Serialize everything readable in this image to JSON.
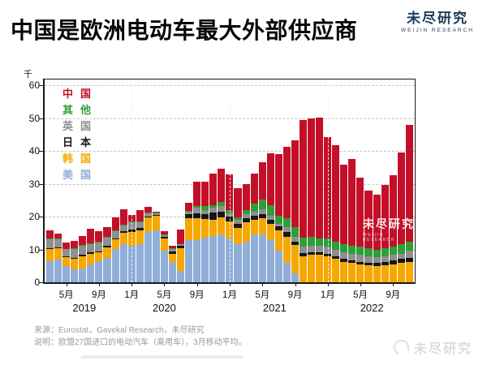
{
  "page": {
    "title": "中国是欧洲电动车最大外部供应商"
  },
  "brand": {
    "name": "未尽研究",
    "sub": "WEIJIN RESEARCH"
  },
  "watermark": {
    "name": "未尽研究",
    "sub": "WEIJIN RESEARCH"
  },
  "footer": {
    "source": "来源：Eurostat，Gavekal Research，未尽研究",
    "note": "说明：欧盟27国进口的电动汽车（乘用车），3月移动平均。",
    "bottom_logo": "未尽研究"
  },
  "chart_data": {
    "type": "bar",
    "stacked": true,
    "unit_label": "千",
    "ylim": [
      0,
      60
    ],
    "yticks": [
      0,
      10,
      20,
      30,
      40,
      50,
      60
    ],
    "grid": "horizontal-dashed",
    "legend_position": "top-left-inside",
    "legend_order_top_to_bottom": [
      "中国",
      "其他",
      "英国",
      "日本",
      "韩国",
      "美国"
    ],
    "x": [
      "2019-03",
      "2019-04",
      "2019-05",
      "2019-06",
      "2019-07",
      "2019-08",
      "2019-09",
      "2019-10",
      "2019-11",
      "2019-12",
      "2020-01",
      "2020-02",
      "2020-03",
      "2020-04",
      "2020-05",
      "2020-06",
      "2020-07",
      "2020-08",
      "2020-09",
      "2020-10",
      "2020-11",
      "2020-12",
      "2021-01",
      "2021-02",
      "2021-03",
      "2021-04",
      "2021-05",
      "2021-06",
      "2021-07",
      "2021-08",
      "2021-09",
      "2021-10",
      "2021-11",
      "2021-12",
      "2022-01",
      "2022-02",
      "2022-03",
      "2022-04",
      "2022-05",
      "2022-06",
      "2022-07",
      "2022-08",
      "2022-09",
      "2022-10",
      "2022-11"
    ],
    "xticks": [
      {
        "i": 2,
        "label": "5月"
      },
      {
        "i": 6,
        "label": "9月"
      },
      {
        "i": 10,
        "label": "1月"
      },
      {
        "i": 14,
        "label": "5月"
      },
      {
        "i": 18,
        "label": "9月"
      },
      {
        "i": 22,
        "label": "1月"
      },
      {
        "i": 26,
        "label": "5月"
      },
      {
        "i": 30,
        "label": "9月"
      },
      {
        "i": 34,
        "label": "1月"
      },
      {
        "i": 38,
        "label": "5月"
      },
      {
        "i": 42,
        "label": "9月"
      }
    ],
    "year_labels": [
      {
        "i": 4.2,
        "label": "2019"
      },
      {
        "i": 14,
        "label": "2020"
      },
      {
        "i": 27.5,
        "label": "2021"
      },
      {
        "i": 39.4,
        "label": "2022"
      }
    ],
    "year_lines": [
      10,
      22,
      34
    ],
    "series": [
      {
        "name": "美国",
        "color": "#8FAED8",
        "values": [
          6.5,
          7.0,
          5.0,
          4.0,
          4.3,
          5.5,
          6.3,
          7.5,
          10.0,
          11.5,
          11.2,
          11.6,
          15.3,
          15.7,
          9.5,
          6.2,
          3.4,
          12.9,
          12.8,
          13.6,
          14.0,
          14.5,
          13.3,
          11.6,
          12.4,
          14.5,
          14.5,
          12.8,
          9.6,
          6.0,
          2.8,
          0,
          0,
          0,
          0,
          0,
          0,
          0,
          0,
          0,
          0,
          0,
          0,
          0,
          0
        ]
      },
      {
        "name": "韩国",
        "color": "#F6A800",
        "values": [
          3.5,
          3.4,
          2.6,
          3.1,
          3.6,
          3.1,
          2.8,
          3.0,
          3.0,
          3.6,
          4.1,
          4.1,
          4.5,
          4.5,
          3.8,
          2.5,
          7.0,
          6.5,
          6.8,
          5.6,
          5.0,
          5.3,
          5.3,
          4.9,
          5.9,
          4.5,
          4.9,
          5.0,
          6.2,
          7.8,
          8.5,
          8.0,
          8.3,
          8.4,
          7.9,
          7.1,
          6.2,
          5.9,
          5.4,
          5.2,
          5.0,
          5.2,
          5.4,
          5.9,
          6.2
        ]
      },
      {
        "name": "日本",
        "color": "#161616",
        "values": [
          0.3,
          0.3,
          0.2,
          0.3,
          0.4,
          0.5,
          0.4,
          0.5,
          0.4,
          0.4,
          0.8,
          0.8,
          0.3,
          0.2,
          0.5,
          0.8,
          0.8,
          1.3,
          1.4,
          1.5,
          2.2,
          1.7,
          1.4,
          1.3,
          1.2,
          1.2,
          1.3,
          1.2,
          1.2,
          1.6,
          1.0,
          0.9,
          0.8,
          0.7,
          0.8,
          0.8,
          0.9,
          0.8,
          0.8,
          0.8,
          0.9,
          1.0,
          1.3,
          1.2,
          1.3
        ]
      },
      {
        "name": "英国",
        "color": "#8F8F8F",
        "values": [
          2.7,
          2.4,
          2.2,
          2.6,
          2.7,
          2.5,
          2.6,
          2.6,
          2.2,
          1.7,
          2.1,
          1.7,
          0.9,
          0.7,
          0.5,
          0.6,
          0.3,
          0.8,
          1.7,
          1.2,
          1.5,
          1.7,
          1.0,
          1.2,
          1.2,
          1.3,
          1.6,
          1.2,
          0.8,
          1.5,
          1.5,
          2.0,
          2.1,
          2.1,
          2.1,
          2.1,
          2.0,
          2.0,
          2.2,
          1.9,
          1.8,
          1.7,
          1.7,
          1.6,
          2.1
        ]
      },
      {
        "name": "其他",
        "color": "#2E9E36",
        "values": [
          0.3,
          0.2,
          0.2,
          0.3,
          0.3,
          0.3,
          0.3,
          0.3,
          0.3,
          0.3,
          0.3,
          0.3,
          0.2,
          0.2,
          0.2,
          0.2,
          0.2,
          0.2,
          0.5,
          1.2,
          0.8,
          1.2,
          0.9,
          0.7,
          1.2,
          2.5,
          2.9,
          3.3,
          2.4,
          2.5,
          2.9,
          2.6,
          2.7,
          2.1,
          2.5,
          2.4,
          2.5,
          2.5,
          2.4,
          2.5,
          2.3,
          2.5,
          2.4,
          2.9,
          2.8
        ]
      },
      {
        "name": "中国",
        "color": "#C40F28",
        "values": [
          2.5,
          1.5,
          1.8,
          2.2,
          2.9,
          4.4,
          3.1,
          2.9,
          3.9,
          4.7,
          1.9,
          3.4,
          1.8,
          0.2,
          1.0,
          0.7,
          4.3,
          2.5,
          7.3,
          7.4,
          9.5,
          10.2,
          11.0,
          8.9,
          7.9,
          9.0,
          11.3,
          15.8,
          18.7,
          21.8,
          26.5,
          36.0,
          36.0,
          36.9,
          30.9,
          29.4,
          24.2,
          26.3,
          21.1,
          17.5,
          16.7,
          19.3,
          21.7,
          28.0,
          35.5
        ]
      }
    ],
    "title": "中国是欧洲电动车最大外部供应商",
    "xlabel": "",
    "ylabel": "千"
  }
}
